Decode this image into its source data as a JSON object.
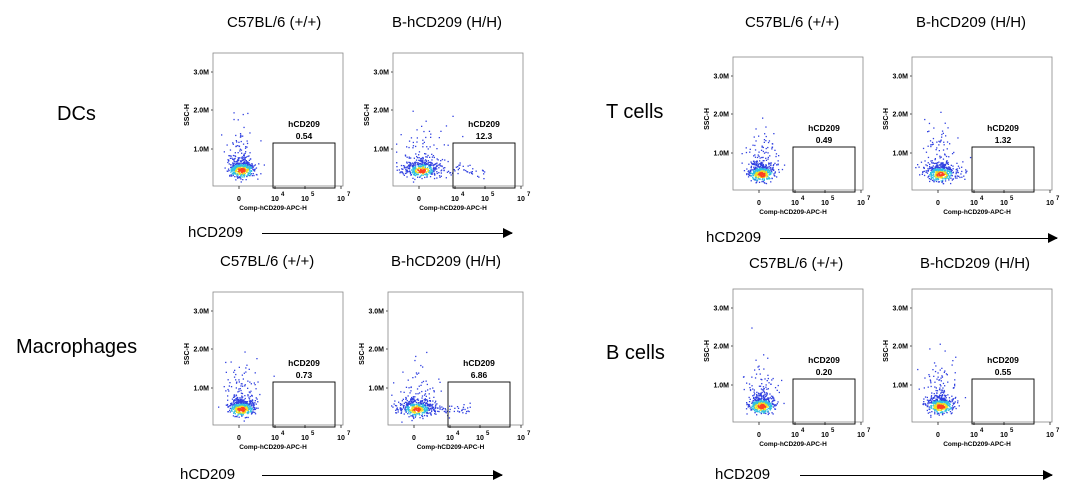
{
  "groups": [
    {
      "label": "DCs",
      "axis_caption": "hCD209",
      "panels": [
        {
          "title": "C57BL/6 (+/+)",
          "gate_label": "hCD209",
          "percent": "0.54",
          "spread": 0.0
        },
        {
          "title": "B-hCD209 (H/H)",
          "gate_label": "hCD209",
          "percent": "12.3",
          "spread": 1.0
        }
      ]
    },
    {
      "label": "T cells",
      "axis_caption": "hCD209",
      "panels": [
        {
          "title": "C57BL/6 (+/+)",
          "gate_label": "hCD209",
          "percent": "0.49",
          "spread": 0.0
        },
        {
          "title": "B-hCD209 (H/H)",
          "gate_label": "hCD209",
          "percent": "1.32",
          "spread": 0.3
        }
      ]
    },
    {
      "label": "Macrophages",
      "axis_caption": "hCD209",
      "panels": [
        {
          "title": "C57BL/6 (+/+)",
          "gate_label": "hCD209",
          "percent": "0.73",
          "spread": 0.0
        },
        {
          "title": "B-hCD209 (H/H)",
          "gate_label": "hCD209",
          "percent": "6.86",
          "spread": 0.8
        }
      ]
    },
    {
      "label": "B cells",
      "axis_caption": "hCD209",
      "panels": [
        {
          "title": "C57BL/6 (+/+)",
          "gate_label": "hCD209",
          "percent": "0.20",
          "spread": 0.0
        },
        {
          "title": "B-hCD209 (H/H)",
          "gate_label": "hCD209",
          "percent": "0.55",
          "spread": 0.1
        }
      ]
    }
  ],
  "axes": {
    "y_label": "SSC-H",
    "y_ticks": [
      "3.0M",
      "2.0M",
      "1.0M"
    ],
    "x_label": "Comp-hCD209-APC-H",
    "x_ticks": [
      {
        "base": "0",
        "exp": ""
      },
      {
        "base": "10",
        "exp": "4"
      },
      {
        "base": "10",
        "exp": "5"
      },
      {
        "base": "10",
        "exp": "7"
      }
    ]
  },
  "chart_data": {
    "type": "scatter",
    "description_free": true,
    "plots": [
      {
        "group": "DCs",
        "sample": "C57BL/6 (+/+)",
        "gate_percent": 0.54
      },
      {
        "group": "DCs",
        "sample": "B-hCD209 (H/H)",
        "gate_percent": 12.3
      },
      {
        "group": "T cells",
        "sample": "C57BL/6 (+/+)",
        "gate_percent": 0.49
      },
      {
        "group": "T cells",
        "sample": "B-hCD209 (H/H)",
        "gate_percent": 1.32
      },
      {
        "group": "Macrophages",
        "sample": "C57BL/6 (+/+)",
        "gate_percent": 0.73
      },
      {
        "group": "Macrophages",
        "sample": "B-hCD209 (H/H)",
        "gate_percent": 6.86
      },
      {
        "group": "B cells",
        "sample": "C57BL/6 (+/+)",
        "gate_percent": 0.2
      },
      {
        "group": "B cells",
        "sample": "B-hCD209 (H/H)",
        "gate_percent": 0.55
      }
    ],
    "y_ticks": [
      "1.0M",
      "2.0M",
      "3.0M"
    ],
    "grid": false,
    "colors": {
      "low": "#3040e0",
      "mid": "#30c0e0",
      "high": "#f0e020",
      "peak": "#ff4020"
    }
  }
}
